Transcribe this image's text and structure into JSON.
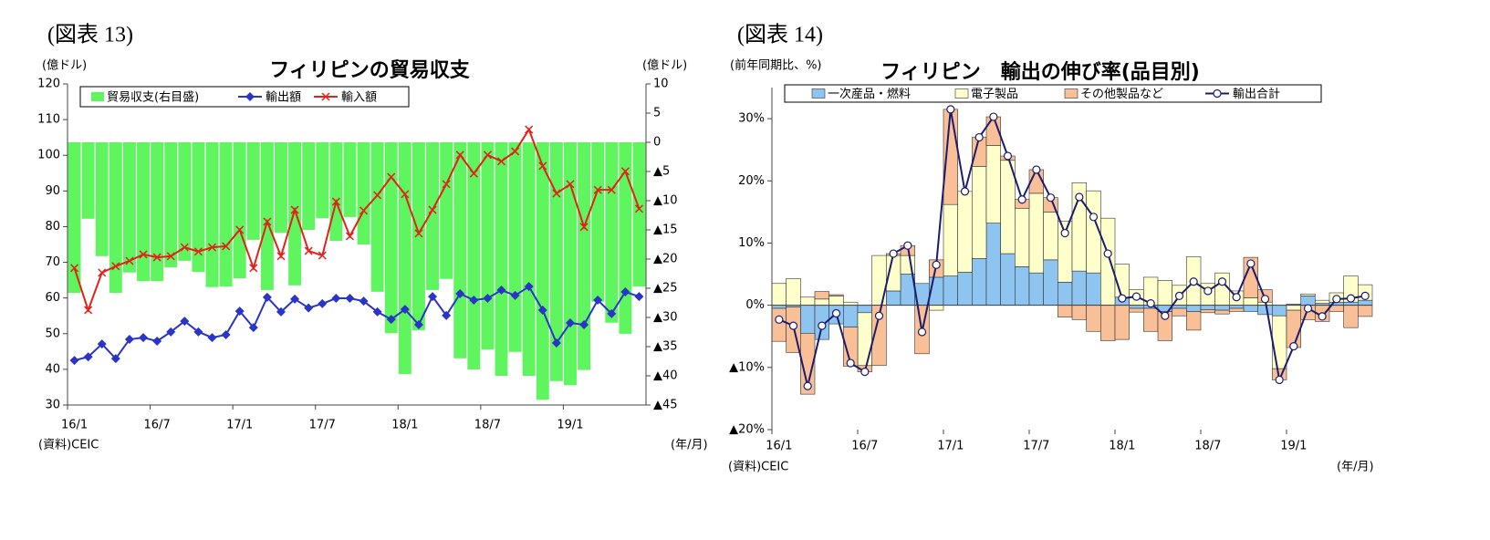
{
  "chart_data": [
    {
      "type": "combo",
      "figure_label": "(図表 13)",
      "title": "フィリピンの貿易収支",
      "y_label": "(億ドル)",
      "y2_label": "(億ドル)",
      "source": "(資料)CEIC",
      "x_label": "(年/月)",
      "categories": [
        "16/1",
        null,
        null,
        null,
        null,
        null,
        "16/7",
        null,
        null,
        null,
        null,
        null,
        "17/1",
        null,
        null,
        null,
        null,
        null,
        "17/7",
        null,
        null,
        null,
        null,
        null,
        "18/1",
        null,
        null,
        null,
        null,
        null,
        "18/7",
        null,
        null,
        null,
        null,
        null,
        "19/1",
        null,
        null,
        null,
        null,
        null
      ],
      "ylim": [
        30,
        120
      ],
      "yticks": [
        30,
        40,
        50,
        60,
        70,
        80,
        90,
        100,
        110,
        120
      ],
      "y2lim": [
        -45,
        10
      ],
      "y2ticks": [
        10,
        5,
        0,
        {
          "value": -5,
          "label": "▲5"
        },
        {
          "value": -10,
          "label": "▲10"
        },
        {
          "value": -15,
          "label": "▲15"
        },
        {
          "value": -20,
          "label": "▲20"
        },
        {
          "value": -25,
          "label": "▲25"
        },
        {
          "value": -30,
          "label": "▲30"
        },
        {
          "value": -35,
          "label": "▲35"
        },
        {
          "value": -40,
          "label": "▲40"
        },
        {
          "value": -45,
          "label": "▲45"
        }
      ],
      "grid": false,
      "legend": "top-left",
      "series": [
        {
          "name": "貿易収支(右目盛)",
          "type": "bar",
          "axis": "y2",
          "color": "#5ef55e",
          "values": [
            -25.8,
            -13.1,
            -19.5,
            -25.8,
            -22.3,
            -23.8,
            -23.8,
            -21.4,
            -20.3,
            -22.2,
            -24.8,
            -24.7,
            -23.3,
            -16.7,
            -25.3,
            -15.5,
            -24.5,
            -15,
            -13,
            -16.9,
            -12.8,
            -17.5,
            -25.6,
            -32.7,
            -39.7,
            -32.2,
            -25.3,
            -23.4,
            -37,
            -38.9,
            -35.5,
            -40,
            -35.9,
            -40,
            -44.1,
            -40.9,
            -41.6,
            -39,
            -27.3,
            -30.9,
            -32.8,
            -24.7
          ]
        },
        {
          "name": "輸出額",
          "type": "line",
          "marker": "diamond",
          "color": "#2a35c8",
          "values": [
            42.5,
            43.5,
            47.1,
            43,
            48.4,
            48.9,
            47.9,
            50.5,
            53.5,
            50.5,
            48.9,
            49.7,
            56.3,
            51.7,
            60.2,
            56.1,
            59.7,
            57.2,
            58.4,
            59.9,
            59.9,
            59.1,
            56.1,
            54,
            56.8,
            52.5,
            60.4,
            55.1,
            61.2,
            59.4,
            59.9,
            62.2,
            60.7,
            63.2,
            56.6,
            47.4,
            53,
            52.5,
            59.4,
            55.6,
            61.7,
            60.4
          ]
        },
        {
          "name": "輸入額",
          "type": "line",
          "marker": "x",
          "color": "#e3211c",
          "values": [
            68.4,
            56.6,
            67.1,
            68.9,
            70.4,
            72.2,
            71.4,
            71.7,
            74.2,
            73,
            74.2,
            74.5,
            79.1,
            68.4,
            81.4,
            71.7,
            84.7,
            73.2,
            71.9,
            87,
            77.3,
            84.5,
            88.8,
            93.9,
            89.1,
            78.1,
            84.7,
            91.9,
            100.1,
            94.9,
            100.1,
            98.3,
            101.1,
            107.2,
            97,
            89.3,
            91.9,
            79.9,
            90.3,
            90.3,
            95.5,
            85
          ]
        }
      ]
    },
    {
      "type": "stacked-bar",
      "figure_label": "(図表 14)",
      "title": "フィリピン　輸出の伸び率(品目別)",
      "y_label": "(前年同期比、%)",
      "source": "(資料)CEIC",
      "x_label": "(年/月)",
      "categories": [
        "16/1",
        null,
        null,
        null,
        null,
        null,
        "16/7",
        null,
        null,
        null,
        null,
        null,
        "17/1",
        null,
        null,
        null,
        null,
        null,
        "17/7",
        null,
        null,
        null,
        null,
        null,
        "18/1",
        null,
        null,
        null,
        null,
        null,
        "18/7",
        null,
        null,
        null,
        null,
        null,
        "19/1",
        null,
        null,
        null,
        null,
        null
      ],
      "ylim": [
        -20,
        35
      ],
      "yticks": [
        {
          "value": -20,
          "label": "▲20%"
        },
        {
          "value": -10,
          "label": "▲10%"
        },
        {
          "value": 0,
          "label": "0%"
        },
        {
          "value": 10,
          "label": "10%"
        },
        {
          "value": 20,
          "label": "20%"
        },
        {
          "value": 30,
          "label": "30%"
        }
      ],
      "grid": false,
      "legend": "top",
      "series": [
        {
          "name": "一次産品・燃料",
          "type": "bar",
          "color": "#8ec5f0",
          "values": [
            -0.5,
            -0.3,
            -4.5,
            -5.5,
            -3,
            -3.5,
            -1.2,
            0,
            2.3,
            5,
            3.5,
            4.5,
            4.7,
            5.3,
            7.5,
            13.2,
            8.3,
            6.2,
            5.2,
            7.3,
            3.7,
            5.5,
            5.2,
            0,
            1.3,
            -0.5,
            -0.5,
            -1,
            -0.5,
            -1,
            -0.7,
            -0.8,
            -0.5,
            -1,
            -1.5,
            -1.7,
            0.2,
            1.5,
            0.3,
            0.5,
            0.5,
            0.8
          ]
        },
        {
          "name": "電子製品",
          "type": "bar",
          "color": "#ffffcc",
          "values": [
            3.5,
            4.3,
            1.3,
            1,
            1.5,
            0.5,
            -8.5,
            8,
            5.7,
            3,
            0,
            -0.8,
            11.5,
            13,
            14.8,
            12.5,
            15,
            9.4,
            12.8,
            7.7,
            9.8,
            14.2,
            13.2,
            14,
            5.3,
            2.5,
            4.5,
            4,
            3.2,
            7.8,
            3.5,
            5.2,
            2.3,
            1.2,
            0.5,
            -8.5,
            -0.8,
            0.3,
            0.5,
            1.5,
            4.2,
            2.5
          ]
        },
        {
          "name": "その他製品など",
          "type": "bar",
          "color": "#f9bf96",
          "values": [
            -5.3,
            -7.3,
            -9.8,
            1.2,
            0.2,
            -6.3,
            -1,
            -9.7,
            0.3,
            1.6,
            -7.8,
            2.8,
            15.3,
            0,
            4.7,
            4.6,
            0.7,
            1.4,
            3.8,
            2.3,
            -1.9,
            -2.3,
            -4.2,
            -5.7,
            -5.5,
            -0.6,
            -3.7,
            -4.7,
            -1.2,
            -3,
            -0.5,
            -0.6,
            -0.5,
            6.5,
            2,
            -1.8,
            -6,
            -2.3,
            -2.6,
            -1,
            -3.6,
            -1.8
          ]
        },
        {
          "name": "輸出合計",
          "type": "line",
          "marker": "circle",
          "color": "#1c1c6e",
          "values": [
            -2.3,
            -3.3,
            -13,
            -3.3,
            -1.3,
            -9.3,
            -10.7,
            -1.7,
            8.3,
            9.6,
            -4.3,
            6.5,
            31.5,
            18.3,
            27,
            30.3,
            24,
            17,
            21.8,
            17.3,
            11.6,
            17.4,
            14.2,
            8.3,
            1.1,
            1.4,
            0.3,
            -1.7,
            1.5,
            3.8,
            2.3,
            3.8,
            1.3,
            6.7,
            1,
            -12,
            -6.6,
            -0.5,
            -1.8,
            1,
            1.1,
            1.5
          ]
        }
      ]
    }
  ]
}
